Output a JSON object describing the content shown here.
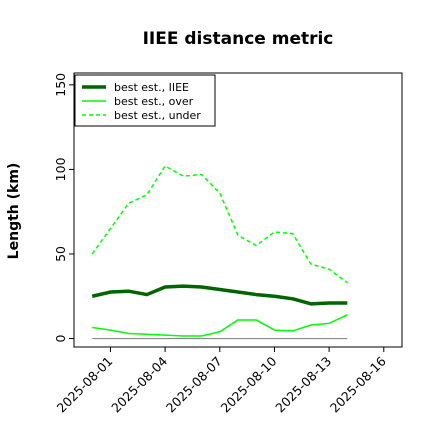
{
  "chart_data": {
    "type": "line",
    "title": "IIEE distance metric",
    "xlabel": "",
    "ylabel": "Length (km)",
    "x": [
      "2025-07-31",
      "2025-08-01",
      "2025-08-02",
      "2025-08-03",
      "2025-08-04",
      "2025-08-05",
      "2025-08-06",
      "2025-08-07",
      "2025-08-08",
      "2025-08-09",
      "2025-08-10",
      "2025-08-11",
      "2025-08-12",
      "2025-08-13",
      "2025-08-14"
    ],
    "xticks": [
      "2025-08-01",
      "2025-08-04",
      "2025-08-07",
      "2025-08-10",
      "2025-08-13",
      "2025-08-16"
    ],
    "xlim": [
      "2025-07-30",
      "2025-08-17"
    ],
    "ylim": [
      -5,
      157
    ],
    "yticks": [
      0,
      50,
      100,
      150
    ],
    "grid": false,
    "legend_position": "top-left",
    "series": [
      {
        "name": "best est., IIEE",
        "color": "#006400",
        "style": "solid-thick",
        "values": [
          25,
          27.5,
          28,
          26,
          30.5,
          31,
          30.5,
          29,
          27.5,
          26,
          25,
          23.5,
          20.5,
          21,
          21
        ]
      },
      {
        "name": "best est., over",
        "color": "#00ff00",
        "style": "solid",
        "values": [
          6.5,
          5,
          3,
          2.5,
          2,
          1.5,
          1.5,
          4,
          11,
          11,
          5,
          4.5,
          8,
          9,
          14
        ]
      },
      {
        "name": "best est., under",
        "color": "#00ff00",
        "style": "dashed",
        "values": [
          50,
          65,
          80,
          85,
          102,
          96,
          97,
          86,
          61,
          55,
          63,
          62,
          44,
          41,
          33
        ]
      },
      {
        "name": "",
        "color": "#888888",
        "style": "solid-thin",
        "values": [
          0,
          0,
          0,
          0,
          0,
          0,
          0,
          0,
          0,
          0,
          0,
          0,
          0,
          0,
          0
        ]
      }
    ]
  }
}
